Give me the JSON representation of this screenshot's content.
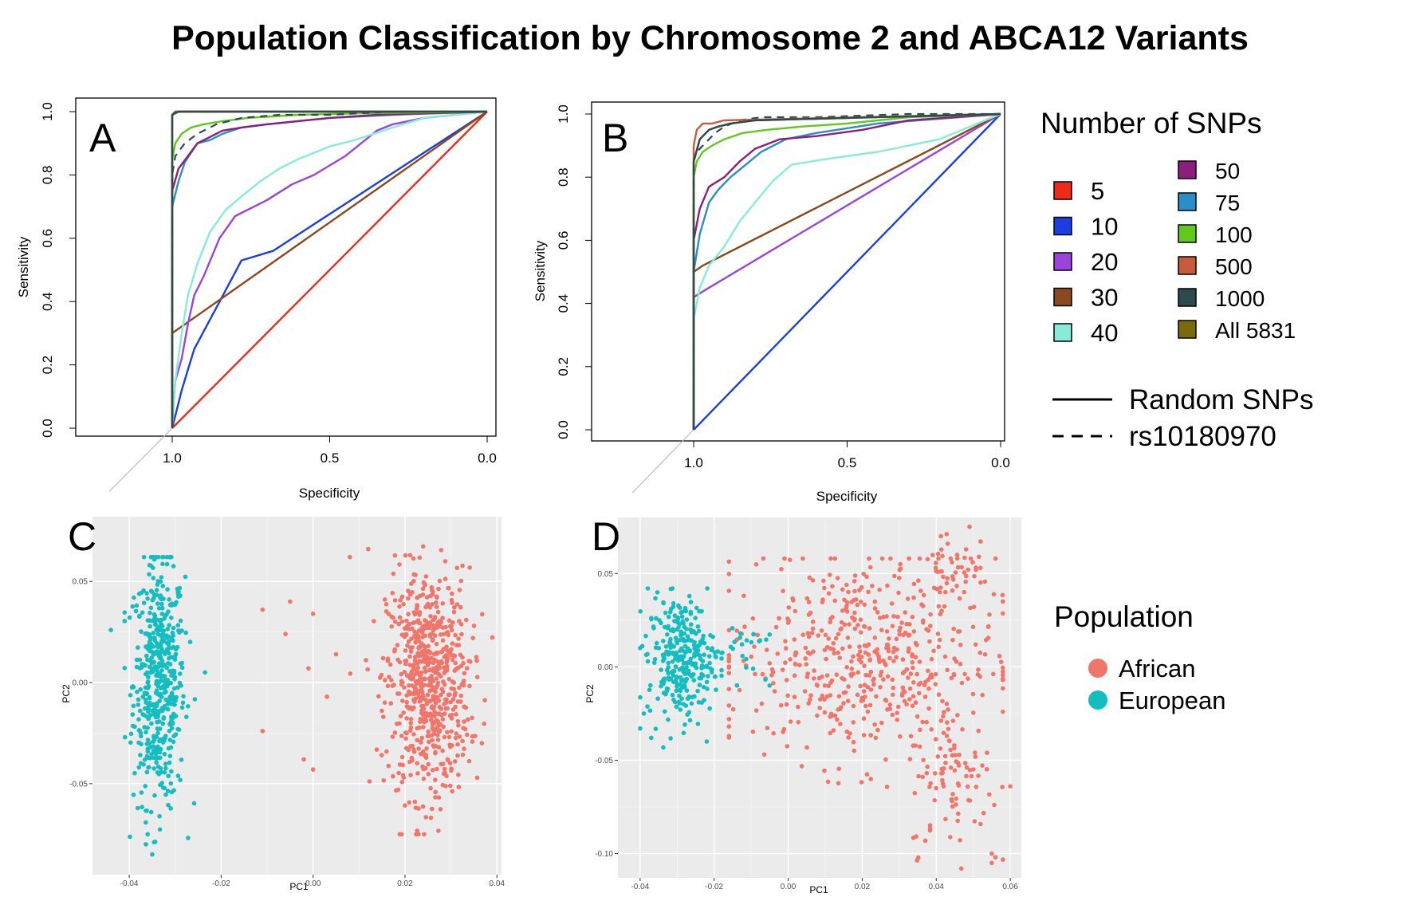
{
  "title": "Population Classification by Chromosome 2 and ABCA12 Variants",
  "colors": {
    "snp_5": "#ee2a19",
    "snp_10": "#1a3fe0",
    "snp_20": "#9a44dc",
    "snp_30": "#8a4a1e",
    "snp_40": "#86ecd8",
    "snp_50": "#8c1f7e",
    "snp_75": "#2a8ec9",
    "snp_100": "#62c81b",
    "snp_500": "#c85a3e",
    "snp_1000": "#2d4a4c",
    "snp_all": "#7b6a0c",
    "african": "#f0766b",
    "european": "#14bdbf",
    "gg_panel": "#ebebeb"
  },
  "legend_snps": {
    "title": "Number of SNPs",
    "items": [
      {
        "label": "5",
        "color_key": "snp_5"
      },
      {
        "label": "10",
        "color_key": "snp_10"
      },
      {
        "label": "20",
        "color_key": "snp_20"
      },
      {
        "label": "30",
        "color_key": "snp_30"
      },
      {
        "label": "40",
        "color_key": "snp_40"
      },
      {
        "label": "50",
        "color_key": "snp_50"
      },
      {
        "label": "75",
        "color_key": "snp_75"
      },
      {
        "label": "100",
        "color_key": "snp_100"
      },
      {
        "label": "500",
        "color_key": "snp_500"
      },
      {
        "label": "1000",
        "color_key": "snp_1000"
      },
      {
        "label": "All 5831",
        "color_key": "snp_all"
      }
    ],
    "line_types": [
      {
        "label": "Random SNPs",
        "style": "solid"
      },
      {
        "label": "rs10180970",
        "style": "dashed"
      }
    ]
  },
  "legend_population": {
    "title": "Population",
    "items": [
      {
        "label": "African",
        "color_key": "african"
      },
      {
        "label": "European",
        "color_key": "european"
      }
    ]
  },
  "chart_data": [
    {
      "panel": "A",
      "type": "line",
      "xlabel": "Specificity",
      "ylabel": "Sensitivity",
      "xlim": [
        1.2,
        0.0
      ],
      "ylim": [
        0.0,
        1.0
      ],
      "x_ticks": [
        "1.0",
        "0.5",
        "0.0"
      ],
      "y_ticks": [
        "0.0",
        "0.2",
        "0.4",
        "0.6",
        "0.8",
        "1.0"
      ],
      "diagonal_reference": true,
      "series": [
        {
          "name": "5",
          "color_key": "snp_5",
          "style": "solid",
          "x": [
            1.0,
            0.0
          ],
          "y": [
            0.0,
            1.0
          ]
        },
        {
          "name": "10",
          "color_key": "snp_10",
          "style": "solid",
          "x": [
            1.0,
            0.97,
            0.93,
            0.86,
            0.78,
            0.68,
            0.0
          ],
          "y": [
            0.0,
            0.12,
            0.25,
            0.38,
            0.53,
            0.56,
            1.0
          ]
        },
        {
          "name": "30",
          "color_key": "snp_30",
          "style": "solid",
          "x": [
            1.0,
            1.0,
            0.0
          ],
          "y": [
            0.0,
            0.3,
            1.0
          ]
        },
        {
          "name": "20",
          "color_key": "snp_20",
          "style": "solid",
          "x": [
            1.0,
            0.99,
            0.97,
            0.95,
            0.93,
            0.9,
            0.85,
            0.8,
            0.7,
            0.62,
            0.55,
            0.5,
            0.45,
            0.4,
            0.35,
            0.3,
            0.2,
            0.0
          ],
          "y": [
            0.0,
            0.15,
            0.22,
            0.33,
            0.42,
            0.48,
            0.6,
            0.67,
            0.72,
            0.77,
            0.8,
            0.83,
            0.86,
            0.9,
            0.94,
            0.96,
            0.98,
            1.0
          ]
        },
        {
          "name": "40",
          "color_key": "snp_40",
          "style": "solid",
          "x": [
            1.0,
            0.99,
            0.97,
            0.95,
            0.92,
            0.88,
            0.83,
            0.77,
            0.72,
            0.66,
            0.6,
            0.5,
            0.42,
            0.3,
            0.2,
            0.0
          ],
          "y": [
            0.0,
            0.15,
            0.3,
            0.42,
            0.52,
            0.62,
            0.69,
            0.74,
            0.78,
            0.82,
            0.85,
            0.89,
            0.91,
            0.95,
            0.98,
            1.0
          ]
        },
        {
          "name": "75",
          "color_key": "snp_75",
          "style": "solid",
          "x": [
            1.0,
            1.0,
            0.98,
            0.96,
            0.94,
            0.92,
            0.88,
            0.84,
            0.78,
            0.7,
            0.6,
            0.5,
            0.3,
            0.0
          ],
          "y": [
            0.0,
            0.7,
            0.78,
            0.84,
            0.87,
            0.9,
            0.91,
            0.93,
            0.95,
            0.96,
            0.97,
            0.98,
            0.99,
            1.0
          ]
        },
        {
          "name": "50",
          "color_key": "snp_50",
          "style": "solid",
          "x": [
            1.0,
            1.0,
            0.98,
            0.95,
            0.92,
            0.88,
            0.84,
            0.78,
            0.7,
            0.6,
            0.5,
            0.35,
            0.0
          ],
          "y": [
            0.0,
            0.75,
            0.82,
            0.86,
            0.9,
            0.92,
            0.94,
            0.95,
            0.96,
            0.97,
            0.98,
            0.99,
            1.0
          ]
        },
        {
          "name": "100",
          "color_key": "snp_100",
          "style": "solid",
          "x": [
            1.0,
            1.0,
            0.99,
            0.97,
            0.94,
            0.9,
            0.84,
            0.76,
            0.6,
            0.4,
            0.0
          ],
          "y": [
            0.0,
            0.85,
            0.9,
            0.93,
            0.95,
            0.96,
            0.97,
            0.98,
            0.99,
            0.995,
            1.0
          ]
        },
        {
          "name": "rs10180970",
          "color_key": "snp_1000",
          "style": "dashed",
          "x": [
            1.0,
            1.0,
            0.99,
            0.96,
            0.92,
            0.86,
            0.78,
            0.66,
            0.5,
            0.3,
            0.0
          ],
          "y": [
            0.0,
            0.8,
            0.86,
            0.9,
            0.93,
            0.96,
            0.98,
            0.99,
            0.99,
            1.0,
            1.0
          ]
        },
        {
          "name": "500",
          "color_key": "snp_500",
          "style": "solid",
          "x": [
            1.0,
            1.0,
            0.99,
            0.95,
            0.85,
            0.0
          ],
          "y": [
            0.0,
            0.99,
            1.0,
            1.0,
            1.0,
            1.0
          ]
        },
        {
          "name": "All 5831",
          "color_key": "snp_all",
          "style": "solid",
          "x": [
            1.0,
            1.0,
            0.99,
            0.95,
            0.0
          ],
          "y": [
            0.0,
            0.99,
            1.0,
            1.0,
            1.0
          ]
        },
        {
          "name": "1000",
          "color_key": "snp_1000",
          "style": "solid",
          "x": [
            1.0,
            1.0,
            0.98,
            0.9,
            0.0
          ],
          "y": [
            0.0,
            0.99,
            1.0,
            1.0,
            1.0
          ]
        }
      ]
    },
    {
      "panel": "B",
      "type": "line",
      "xlabel": "Specificity",
      "ylabel": "Sensitivity",
      "xlim": [
        1.2,
        0.0
      ],
      "ylim": [
        0.0,
        1.0
      ],
      "x_ticks": [
        "1.0",
        "0.5",
        "0.0"
      ],
      "y_ticks": [
        "0.0",
        "0.2",
        "0.4",
        "0.6",
        "0.8",
        "1.0"
      ],
      "diagonal_reference": true,
      "series": [
        {
          "name": "10",
          "color_key": "snp_10",
          "style": "solid",
          "x": [
            1.0,
            0.0
          ],
          "y": [
            0.0,
            1.0
          ]
        },
        {
          "name": "20",
          "color_key": "snp_20",
          "style": "solid",
          "x": [
            1.0,
            1.0,
            0.95,
            0.0
          ],
          "y": [
            0.0,
            0.42,
            0.45,
            1.0
          ]
        },
        {
          "name": "30",
          "color_key": "snp_30",
          "style": "solid",
          "x": [
            1.0,
            1.0,
            0.97,
            0.0
          ],
          "y": [
            0.0,
            0.5,
            0.52,
            1.0
          ]
        },
        {
          "name": "40",
          "color_key": "snp_40",
          "style": "solid",
          "x": [
            1.0,
            1.0,
            0.98,
            0.95,
            0.9,
            0.85,
            0.8,
            0.74,
            0.68,
            0.55,
            0.4,
            0.2,
            0.0
          ],
          "y": [
            0.0,
            0.35,
            0.45,
            0.52,
            0.58,
            0.66,
            0.72,
            0.79,
            0.84,
            0.86,
            0.88,
            0.92,
            1.0
          ]
        },
        {
          "name": "75",
          "color_key": "snp_75",
          "style": "solid",
          "x": [
            1.0,
            1.0,
            0.98,
            0.95,
            0.92,
            0.88,
            0.83,
            0.78,
            0.7,
            0.6,
            0.4,
            0.0
          ],
          "y": [
            0.0,
            0.5,
            0.62,
            0.72,
            0.76,
            0.8,
            0.84,
            0.88,
            0.92,
            0.94,
            0.97,
            1.0
          ]
        },
        {
          "name": "50",
          "color_key": "snp_50",
          "style": "solid",
          "x": [
            1.0,
            1.0,
            0.98,
            0.95,
            0.9,
            0.85,
            0.8,
            0.72,
            0.6,
            0.45,
            0.3,
            0.0
          ],
          "y": [
            0.0,
            0.6,
            0.7,
            0.77,
            0.8,
            0.85,
            0.89,
            0.92,
            0.93,
            0.95,
            0.98,
            1.0
          ]
        },
        {
          "name": "100",
          "color_key": "snp_100",
          "style": "solid",
          "x": [
            1.0,
            1.0,
            0.99,
            0.97,
            0.94,
            0.9,
            0.84,
            0.76,
            0.65,
            0.5,
            0.3,
            0.0
          ],
          "y": [
            0.0,
            0.8,
            0.85,
            0.88,
            0.9,
            0.92,
            0.94,
            0.95,
            0.96,
            0.97,
            0.99,
            1.0
          ]
        },
        {
          "name": "rs10180970",
          "color_key": "snp_1000",
          "style": "dashed",
          "x": [
            1.0,
            1.0,
            0.99,
            0.96,
            0.93,
            0.9,
            0.85,
            0.78,
            0.6,
            0.3,
            0.0
          ],
          "y": [
            0.0,
            0.85,
            0.88,
            0.91,
            0.94,
            0.96,
            0.98,
            0.99,
            0.99,
            1.0,
            1.0
          ]
        },
        {
          "name": "500",
          "color_key": "snp_500",
          "style": "solid",
          "x": [
            1.0,
            1.0,
            0.99,
            0.97,
            0.94,
            0.9,
            0.0
          ],
          "y": [
            0.0,
            0.9,
            0.95,
            0.97,
            0.97,
            0.98,
            1.0
          ]
        },
        {
          "name": "All 5831",
          "color_key": "snp_all",
          "style": "solid",
          "x": [
            1.0,
            1.0,
            0.98,
            0.95,
            0.92,
            0.88,
            0.8,
            0.0
          ],
          "y": [
            0.0,
            0.85,
            0.92,
            0.95,
            0.96,
            0.97,
            0.98,
            1.0
          ]
        },
        {
          "name": "1000",
          "color_key": "snp_1000",
          "style": "solid",
          "x": [
            1.0,
            1.0,
            0.98,
            0.95,
            0.92,
            0.88,
            0.8,
            0.0
          ],
          "y": [
            0.0,
            0.85,
            0.92,
            0.95,
            0.96,
            0.97,
            0.98,
            1.0
          ]
        }
      ]
    },
    {
      "panel": "C",
      "type": "scatter",
      "xlabel": "PC1",
      "ylabel": "PC2",
      "xlim": [
        -0.048,
        0.041
      ],
      "ylim": [
        -0.095,
        0.082
      ],
      "x_ticks": [
        -0.04,
        -0.02,
        0.0,
        0.02,
        0.04
      ],
      "x_tick_labels": [
        "-0.04",
        "-0.02",
        "0.00",
        "0.02",
        "0.04"
      ],
      "y_ticks": [
        -0.05,
        0.0,
        0.05
      ],
      "y_tick_labels": [
        "-0.05",
        "0.00",
        "0.05"
      ],
      "grid": true,
      "series": [
        {
          "name": "European",
          "color_key": "european",
          "clusters": [
            {
              "count": 520,
              "x_center": -0.0335,
              "x_sd": 0.0028,
              "x_range": [
                -0.041,
                -0.025
              ],
              "y_center": 0.0,
              "y_sd": 0.03,
              "y_range": [
                -0.08,
                0.062
              ]
            }
          ],
          "extra_points": [
            [
              -0.044,
              0.026
            ],
            [
              -0.039,
              0.042
            ],
            [
              -0.0235,
              0.005
            ],
            [
              -0.035,
              -0.085
            ],
            [
              -0.036,
              -0.075
            ]
          ]
        },
        {
          "name": "African",
          "color_key": "african",
          "clusters": [
            {
              "count": 700,
              "x_center": 0.025,
              "x_sd": 0.0045,
              "x_range": [
                0.008,
                0.039
              ],
              "y_center": 0.0,
              "y_sd": 0.028,
              "y_range": [
                -0.075,
                0.078
              ]
            }
          ],
          "extra_points": [
            [
              -0.011,
              0.036
            ],
            [
              -0.006,
              0.024
            ],
            [
              -0.005,
              0.04
            ],
            [
              0.0,
              0.034
            ],
            [
              -0.011,
              -0.024
            ],
            [
              -0.002,
              -0.038
            ],
            [
              0.0,
              -0.043
            ],
            [
              0.003,
              -0.007
            ],
            [
              -0.001,
              0.007
            ],
            [
              0.005,
              0.014
            ],
            [
              0.012,
              0.066
            ],
            [
              0.008,
              0.062
            ]
          ]
        }
      ]
    },
    {
      "panel": "D",
      "type": "scatter",
      "xlabel": "PC1",
      "ylabel": "PC2",
      "xlim": [
        -0.046,
        0.063
      ],
      "ylim": [
        -0.113,
        0.08
      ],
      "x_ticks": [
        -0.04,
        -0.02,
        0.0,
        0.02,
        0.04,
        0.06
      ],
      "x_tick_labels": [
        "-0.04",
        "-0.02",
        "0.00",
        "0.02",
        "0.04",
        "0.06"
      ],
      "y_ticks": [
        -0.1,
        -0.05,
        0.0,
        0.05
      ],
      "y_tick_labels": [
        "-0.10",
        "-0.05",
        "0.00",
        "0.05"
      ],
      "grid": true,
      "series": [
        {
          "name": "African",
          "color_key": "african",
          "clusters": [
            {
              "count": 520,
              "x_center": 0.02,
              "x_sd": 0.018,
              "x_range": [
                -0.016,
                0.058
              ],
              "y_center": 0.005,
              "y_sd": 0.028,
              "y_range": [
                -0.07,
                0.058
              ]
            },
            {
              "count": 90,
              "x_center": 0.045,
              "x_sd": 0.006,
              "x_range": [
                0.032,
                0.058
              ],
              "y_center": -0.06,
              "y_sd": 0.02,
              "y_range": [
                -0.108,
                -0.02
              ]
            },
            {
              "count": 40,
              "x_center": 0.045,
              "x_sd": 0.004,
              "x_range": [
                0.038,
                0.052
              ],
              "y_center": 0.055,
              "y_sd": 0.012,
              "y_range": [
                0.04,
                0.078
              ]
            }
          ],
          "extra_points": [
            [
              0.055,
              -0.1
            ],
            [
              0.056,
              -0.102
            ],
            [
              0.055,
              -0.105
            ],
            [
              0.06,
              -0.064
            ],
            [
              0.049,
              0.075
            ]
          ]
        },
        {
          "name": "European",
          "color_key": "european",
          "clusters": [
            {
              "count": 300,
              "x_center": -0.029,
              "x_sd": 0.0045,
              "x_range": [
                -0.04,
                -0.018
              ],
              "y_center": 0.005,
              "y_sd": 0.016,
              "y_range": [
                -0.045,
                0.042
              ]
            },
            {
              "count": 25,
              "x_center": -0.013,
              "x_sd": 0.004,
              "x_range": [
                -0.02,
                -0.005
              ],
              "y_center": 0.01,
              "y_sd": 0.01,
              "y_range": [
                -0.01,
                0.03
              ]
            }
          ],
          "extra_points": [
            [
              -0.04,
              -0.033
            ],
            [
              -0.039,
              -0.025
            ],
            [
              -0.037,
              -0.038
            ],
            [
              -0.022,
              -0.04
            ]
          ]
        }
      ]
    }
  ]
}
